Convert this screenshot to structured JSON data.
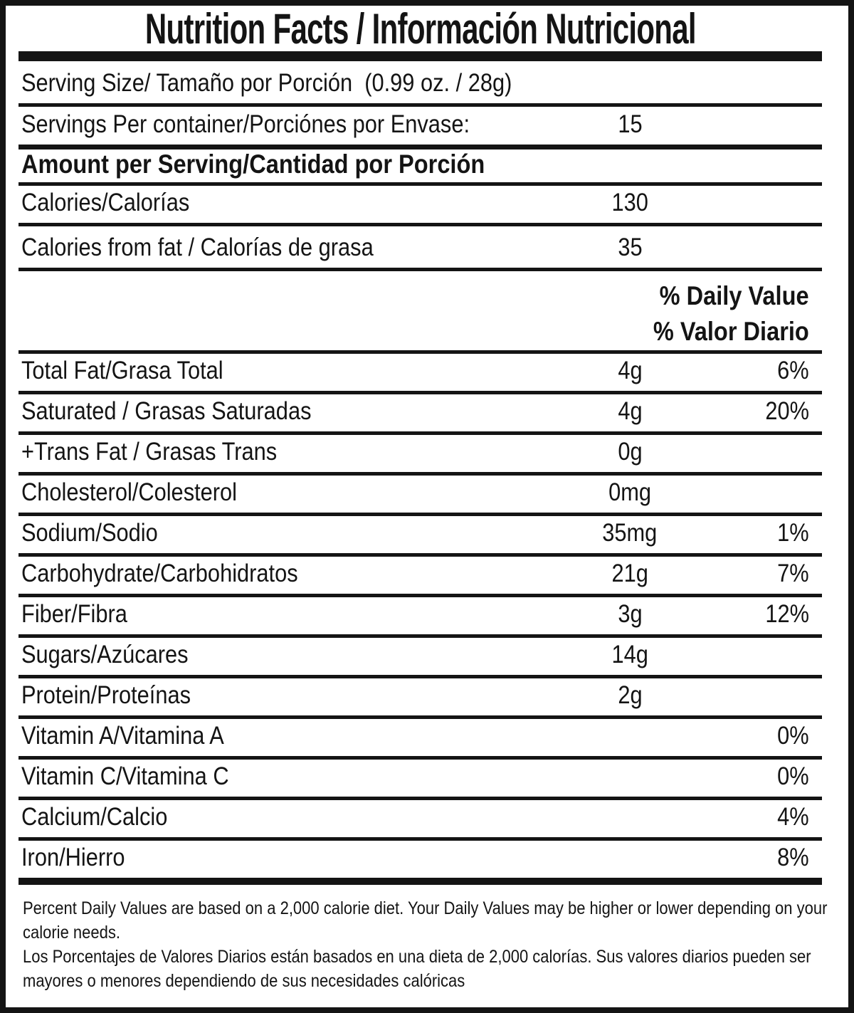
{
  "colors": {
    "ink": "#141414",
    "paper": "#ffffff"
  },
  "header": {
    "title": "Nutrition Facts / Información Nutricional"
  },
  "serving_size_row": {
    "label": "Serving Size/ Tamaño por Porción  (0.99 oz. / 28g)"
  },
  "servings_row": {
    "label": "Servings Per container/Porciónes por Envase:",
    "amount": "15"
  },
  "heading_row": {
    "label": "Amount per Serving/Cantidad por Porción"
  },
  "calories_row": {
    "label": "Calories/Calorías",
    "amount": "130"
  },
  "calories_fat_row": {
    "label": "Calories from fat / Calorías de grasa",
    "amount": "35"
  },
  "daily_value_header": {
    "line1": "% Daily Value",
    "line2": "% Valor Diario"
  },
  "nutrients": [
    {
      "label": "Total Fat/Grasa Total",
      "amount": "4g",
      "percent": "6%"
    },
    {
      "label": "Saturated / Grasas Saturadas",
      "amount": "4g",
      "percent": "20%"
    },
    {
      "label": "+Trans Fat / Grasas Trans",
      "amount": "0g",
      "percent": ""
    },
    {
      "label": "Cholesterol/Colesterol",
      "amount": "0mg",
      "percent": ""
    },
    {
      "label": "Sodium/Sodio",
      "amount": "35mg",
      "percent": "1%"
    },
    {
      "label": "Carbohydrate/Carbohidratos",
      "amount": "21g",
      "percent": "7%"
    },
    {
      "label": "Fiber/Fibra",
      "amount": "3g",
      "percent": "12%"
    },
    {
      "label": "Sugars/Azúcares",
      "amount": "14g",
      "percent": ""
    },
    {
      "label": "Protein/Proteínas",
      "amount": "2g",
      "percent": ""
    },
    {
      "label": "Vitamin A/Vitamina A",
      "amount": "",
      "percent": "0%"
    },
    {
      "label": "Vitamin C/Vitamina C",
      "amount": "",
      "percent": "0%"
    },
    {
      "label": "Calcium/Calcio",
      "amount": "",
      "percent": "4%"
    },
    {
      "label": "Iron/Hierro",
      "amount": "",
      "percent": "8%"
    }
  ],
  "footnotes": {
    "english": "Percent Daily Values are based on a 2,000 calorie diet. Your Daily Values may be higher or lower depending on your calorie needs.",
    "spanish": "Los Porcentajes de Valores Diarios están basados en una dieta de 2,000 calorías. Sus valores diarios pueden ser mayores o menores dependiendo de sus necesidades calóricas"
  }
}
